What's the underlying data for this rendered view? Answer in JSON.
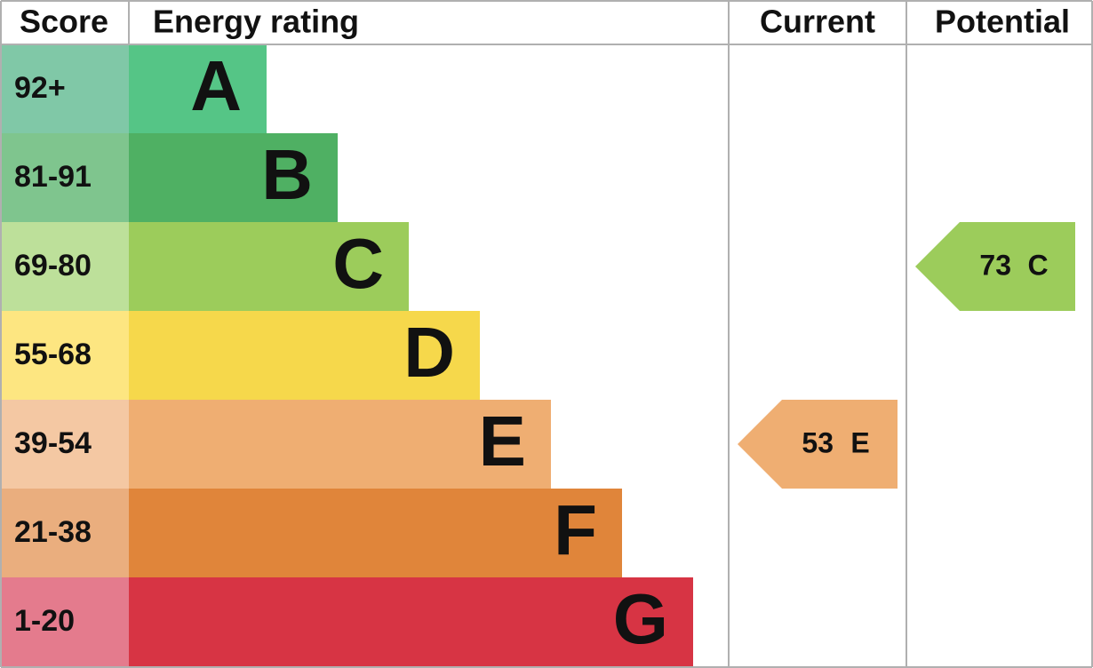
{
  "header": {
    "score": "Score",
    "rating": "Energy rating",
    "current": "Current",
    "potential": "Potential"
  },
  "bands": [
    {
      "score": "92+",
      "letter": "A",
      "color": "#55c586",
      "score_color": "#80c8a7"
    },
    {
      "score": "81-91",
      "letter": "B",
      "color": "#4fb063",
      "score_color": "#7fc58e"
    },
    {
      "score": "69-80",
      "letter": "C",
      "color": "#9ccc5b",
      "score_color": "#bde09a"
    },
    {
      "score": "55-68",
      "letter": "D",
      "color": "#f6d84b",
      "score_color": "#fde681"
    },
    {
      "score": "39-54",
      "letter": "E",
      "color": "#efae72",
      "score_color": "#f4c8a3"
    },
    {
      "score": "21-38",
      "letter": "F",
      "color": "#e0853a",
      "score_color": "#eaae7e"
    },
    {
      "score": "1-20",
      "letter": "G",
      "color": "#d73444",
      "score_color": "#e47b8d"
    }
  ],
  "current": {
    "value": 53,
    "letter": "E"
  },
  "potential": {
    "value": 73,
    "letter": "C"
  }
}
